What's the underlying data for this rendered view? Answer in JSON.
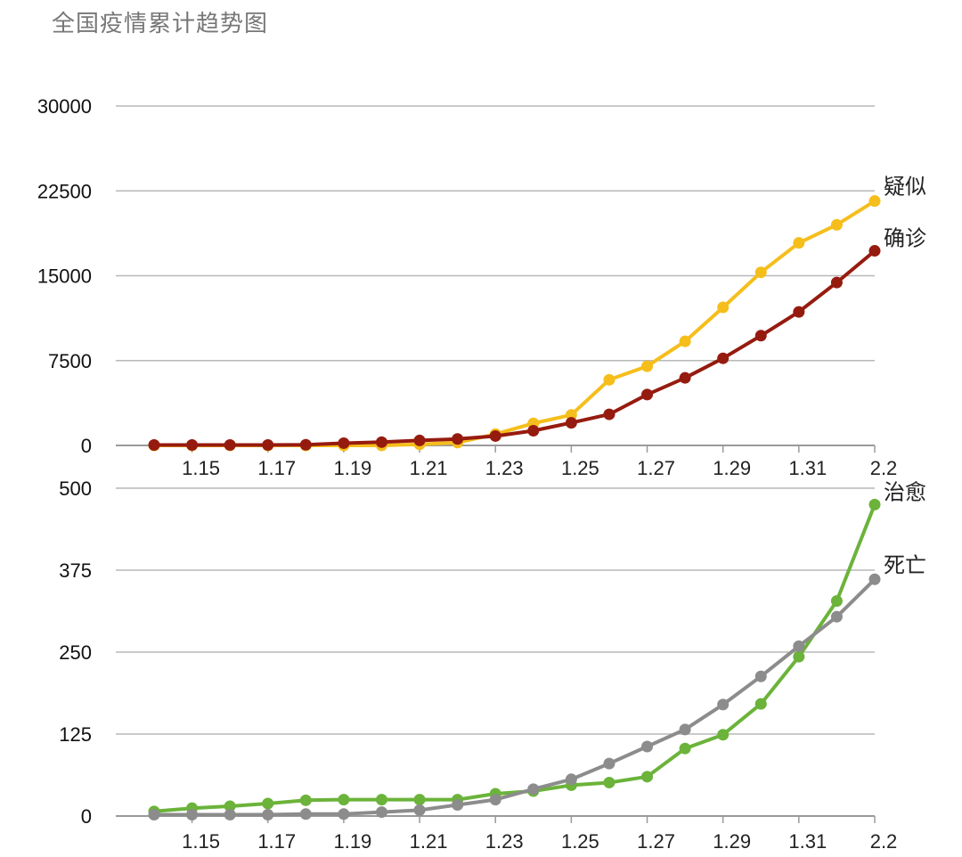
{
  "title": "全国疫情累计趋势图",
  "chart_data": [
    {
      "type": "line",
      "x": [
        "1.14",
        "1.15",
        "1.16",
        "1.17",
        "1.18",
        "1.19",
        "1.20",
        "1.21",
        "1.22",
        "1.23",
        "1.24",
        "1.25",
        "1.26",
        "1.27",
        "1.28",
        "1.29",
        "1.30",
        "1.31",
        "2.1",
        "2.2"
      ],
      "xticks": [
        "1.15",
        "1.17",
        "1.19",
        "1.21",
        "1.23",
        "1.25",
        "1.27",
        "1.29",
        "1.31",
        "2.2"
      ],
      "yticks": [
        "0",
        "7500",
        "15000",
        "22500",
        "30000"
      ],
      "ylim": [
        0,
        30000
      ],
      "grid": true,
      "series": [
        {
          "name": "疑似",
          "color": "#F5BE1B",
          "values": [
            0,
            0,
            0,
            0,
            0,
            0,
            0,
            100,
            250,
            1000,
            1950,
            2700,
            5800,
            7000,
            9200,
            12200,
            15300,
            17900,
            19500,
            21600
          ]
        },
        {
          "name": "确诊",
          "color": "#961B0F",
          "values": [
            40,
            40,
            40,
            40,
            60,
            200,
            290,
            440,
            570,
            830,
            1300,
            2000,
            2750,
            4500,
            5970,
            7700,
            9700,
            11800,
            14400,
            17200
          ]
        }
      ]
    },
    {
      "type": "line",
      "x": [
        "1.14",
        "1.15",
        "1.16",
        "1.17",
        "1.18",
        "1.19",
        "1.20",
        "1.21",
        "1.22",
        "1.23",
        "1.24",
        "1.25",
        "1.26",
        "1.27",
        "1.28",
        "1.29",
        "1.30",
        "1.31",
        "2.1",
        "2.2"
      ],
      "xticks": [
        "1.15",
        "1.17",
        "1.19",
        "1.21",
        "1.23",
        "1.25",
        "1.27",
        "1.29",
        "1.31",
        "2.2"
      ],
      "yticks": [
        "0",
        "125",
        "250",
        "375",
        "500"
      ],
      "ylim": [
        0,
        500
      ],
      "grid": true,
      "series": [
        {
          "name": "治愈",
          "color": "#6BB33A",
          "values": [
            7,
            12,
            15,
            19,
            24,
            25,
            25,
            25,
            25,
            34,
            38,
            47,
            51,
            60,
            103,
            124,
            171,
            243,
            328,
            475
          ]
        },
        {
          "name": "死亡",
          "color": "#8C8C8C",
          "values": [
            2,
            2,
            2,
            2,
            3,
            3,
            6,
            9,
            17,
            25,
            41,
            56,
            80,
            106,
            132,
            170,
            213,
            259,
            304,
            361
          ]
        }
      ]
    }
  ]
}
